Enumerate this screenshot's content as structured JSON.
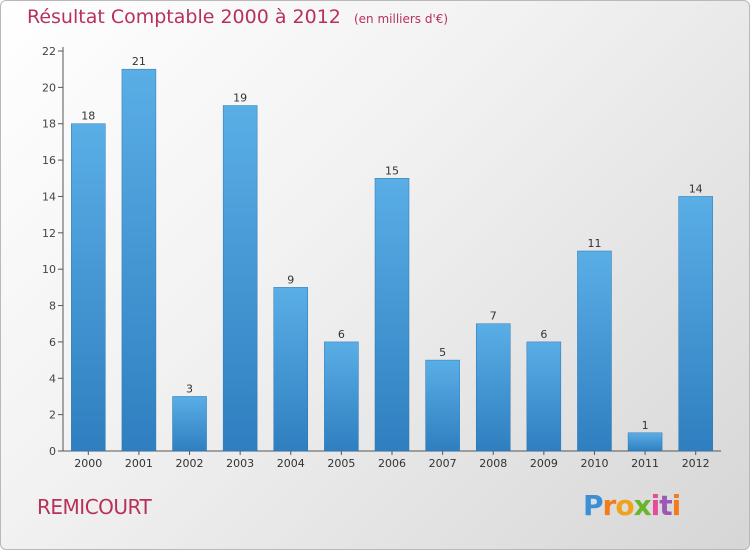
{
  "title": "Résultat Comptable 2000 à 2012",
  "subtitle": "(en milliers d'€)",
  "place": "REMICOURT",
  "logo": {
    "letters": [
      "P",
      "r",
      "o",
      "x",
      "i",
      "t",
      "i"
    ]
  },
  "colors": {
    "title": "#b8315a",
    "bar_top": "#5aaee6",
    "bar_bottom": "#2f7fc0",
    "logo": [
      "#3b8fd6",
      "#f07c1c",
      "#f0a21c",
      "#6ab52a",
      "#e84a9a",
      "#9b59b6",
      "#f07c1c"
    ]
  },
  "chart_data": {
    "type": "bar",
    "title": "Résultat Comptable 2000 à 2012",
    "ylabel": "en milliers d'€",
    "xlabel": "",
    "categories": [
      "2000",
      "2001",
      "2002",
      "2003",
      "2004",
      "2005",
      "2006",
      "2007",
      "2008",
      "2009",
      "2010",
      "2011",
      "2012"
    ],
    "values": [
      18,
      21,
      3,
      19,
      9,
      6,
      15,
      5,
      7,
      6,
      11,
      1,
      14
    ],
    "ylim": [
      0,
      22
    ],
    "yticks": [
      0,
      2,
      4,
      6,
      8,
      10,
      12,
      14,
      16,
      18,
      20,
      22
    ],
    "grid": false,
    "data_labels": true
  }
}
